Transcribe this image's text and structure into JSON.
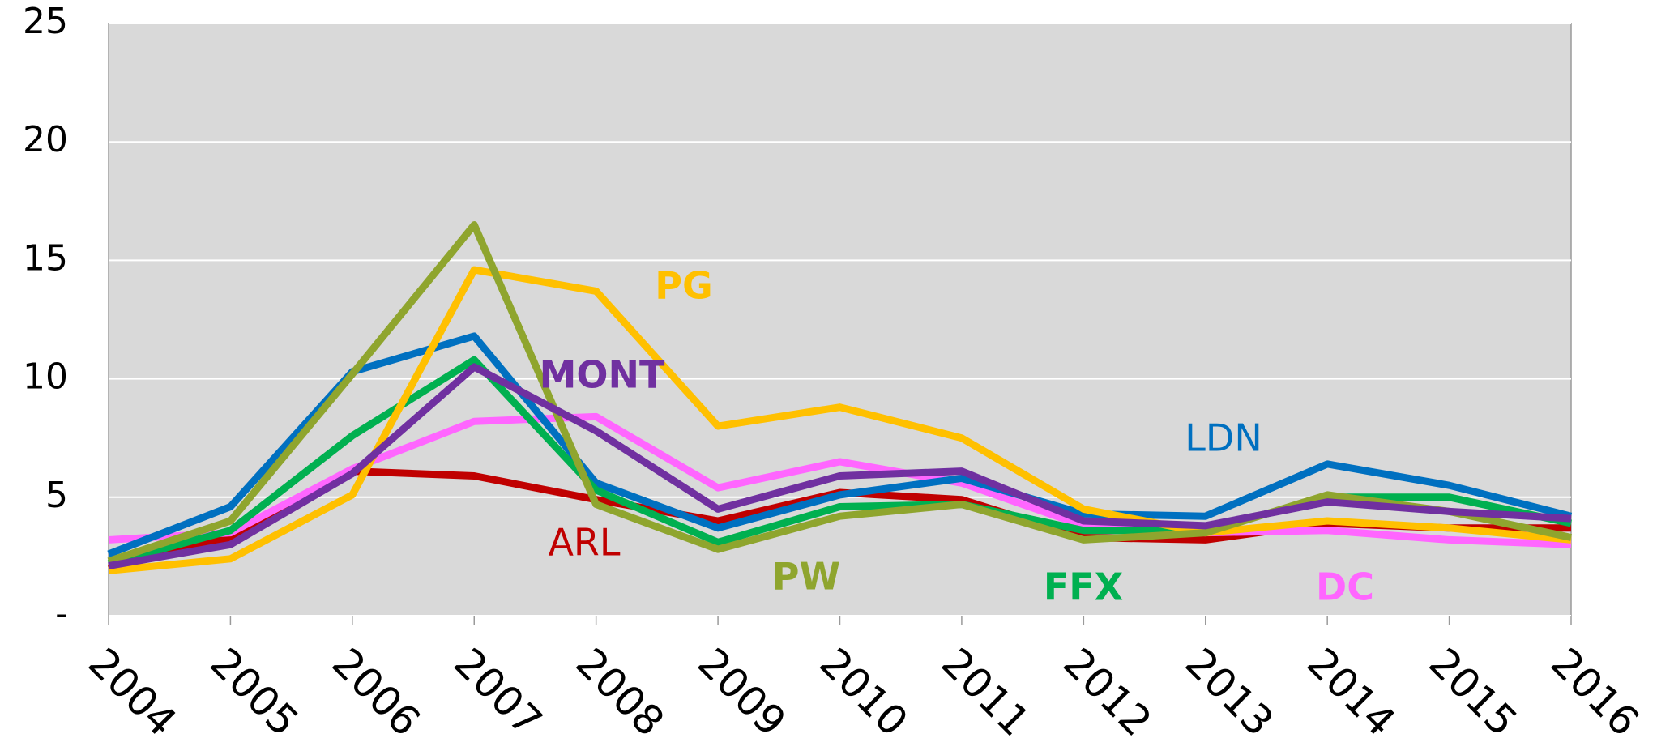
{
  "chart_data": {
    "type": "line",
    "categories": [
      "2004",
      "2005",
      "2006",
      "2007",
      "2008",
      "2009",
      "2010",
      "2011",
      "2012",
      "2013",
      "2014",
      "2015",
      "2016"
    ],
    "series": [
      {
        "name": "ARL",
        "color": "#C00000",
        "values": [
          2.0,
          3.3,
          6.1,
          5.9,
          4.9,
          4.0,
          5.2,
          4.9,
          3.3,
          3.2,
          3.9,
          3.7,
          3.7
        ]
      },
      {
        "name": "DC",
        "color": "#FF66FF",
        "values": [
          3.2,
          3.5,
          6.2,
          8.2,
          8.4,
          5.4,
          6.5,
          5.6,
          3.8,
          3.5,
          3.6,
          3.2,
          3.0
        ]
      },
      {
        "name": "LDN",
        "color": "#0070C0",
        "values": [
          2.6,
          4.6,
          10.3,
          11.8,
          5.6,
          3.7,
          5.1,
          5.8,
          4.3,
          4.2,
          6.4,
          5.5,
          4.2
        ]
      },
      {
        "name": "FFX",
        "color": "#00B050",
        "values": [
          2.2,
          3.6,
          7.6,
          10.8,
          5.3,
          3.1,
          4.6,
          4.7,
          3.6,
          3.6,
          5.0,
          5.0,
          3.9
        ]
      },
      {
        "name": "PG",
        "color": "#FFC000",
        "values": [
          1.9,
          2.4,
          5.1,
          14.6,
          13.7,
          8.0,
          8.8,
          7.5,
          4.5,
          3.5,
          4.0,
          3.7,
          3.2
        ]
      },
      {
        "name": "PW",
        "color": "#8FA52E",
        "values": [
          2.3,
          4.0,
          10.2,
          16.5,
          4.7,
          2.8,
          4.2,
          4.7,
          3.2,
          3.5,
          5.1,
          4.4,
          3.3
        ]
      },
      {
        "name": "MONT",
        "color": "#7030A0",
        "values": [
          2.1,
          3.0,
          6.0,
          10.5,
          7.8,
          4.5,
          5.9,
          6.1,
          4.0,
          3.8,
          4.8,
          4.4,
          4.1
        ]
      }
    ],
    "ylim": [
      0,
      25
    ],
    "yticks": [
      {
        "value": 0,
        "label": "-"
      },
      5,
      10,
      15,
      20,
      25
    ],
    "grid": true
  }
}
